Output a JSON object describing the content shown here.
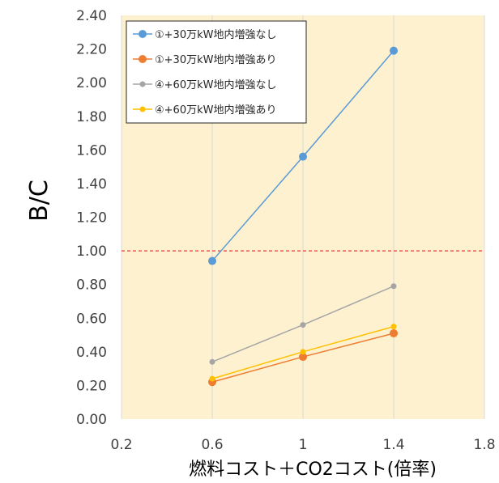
{
  "chart_data": {
    "type": "line",
    "title": "",
    "xlabel": "燃料コスト＋CO2コスト(倍率)",
    "ylabel": "B/C",
    "xlim": [
      0.2,
      1.8
    ],
    "ylim": [
      0.0,
      2.4
    ],
    "x_ticks": [
      "0.2",
      "0.6",
      "1",
      "1.4",
      "1.8"
    ],
    "y_ticks": [
      "0.00",
      "0.20",
      "0.40",
      "0.60",
      "0.80",
      "1.00",
      "1.20",
      "1.40",
      "1.60",
      "1.80",
      "2.00",
      "2.20",
      "2.40"
    ],
    "grid": "vertical",
    "legend_position": "top-left",
    "reference_line": {
      "y": 1.0,
      "color": "#e8252a",
      "style": "dashed"
    },
    "colors": {
      "plot_background": "#fdf1d0",
      "grid": "#d9d9d9"
    },
    "series": [
      {
        "name": "①+30万kW地内増強なし",
        "color": "#5b9bd5",
        "x": [
          0.6,
          1.0,
          1.4
        ],
        "y": [
          0.94,
          1.56,
          2.19
        ]
      },
      {
        "name": "①+30万kW地内増強あり",
        "color": "#ed7d31",
        "x": [
          0.6,
          1.0,
          1.4
        ],
        "y": [
          0.22,
          0.37,
          0.51
        ]
      },
      {
        "name": "④+60万kW地内増強なし",
        "color": "#a5a5a5",
        "x": [
          0.6,
          1.0,
          1.4
        ],
        "y": [
          0.34,
          0.56,
          0.79
        ]
      },
      {
        "name": "④+60万kW地内増強あり",
        "color": "#ffc000",
        "x": [
          0.6,
          1.0,
          1.4
        ],
        "y": [
          0.24,
          0.4,
          0.55
        ]
      }
    ]
  }
}
